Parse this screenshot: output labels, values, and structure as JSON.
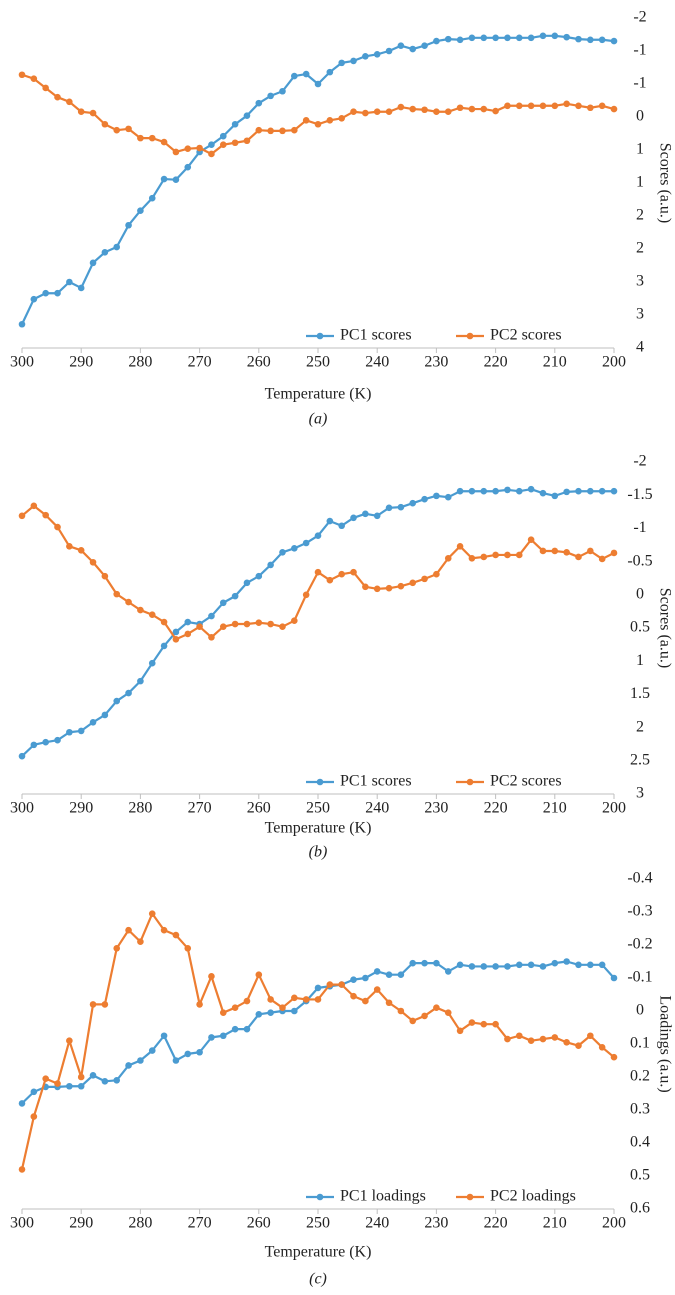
{
  "chart_data": [
    {
      "type": "line",
      "caption": "(a)",
      "x_label": "Temperature (K)",
      "y_label": "Scores (a.u.)",
      "y_axis_side": "right",
      "legend": "lower right",
      "markers": true,
      "x": [
        300,
        298,
        296,
        294,
        292,
        290,
        288,
        286,
        284,
        282,
        280,
        278,
        276,
        274,
        272,
        270,
        268,
        266,
        264,
        262,
        260,
        258,
        256,
        254,
        252,
        250,
        248,
        246,
        244,
        242,
        240,
        238,
        236,
        234,
        232,
        230,
        228,
        226,
        224,
        222,
        220,
        218,
        216,
        214,
        212,
        210,
        208,
        206,
        204,
        202,
        200
      ],
      "xlim": [
        300,
        200
      ],
      "xticks": [
        300,
        290,
        280,
        270,
        260,
        250,
        240,
        230,
        220,
        210,
        200
      ],
      "ylim": [
        3.5,
        -1.5
      ],
      "yticks": [
        {
          "value": -1.5,
          "label": "-2"
        },
        -1,
        {
          "value": -0.5,
          "label": "-1"
        },
        0,
        {
          "value": 0.5,
          "label": "1"
        },
        1,
        {
          "value": 1.5,
          "label": "2"
        },
        2,
        {
          "value": 2.5,
          "label": "3"
        },
        3,
        {
          "value": 3.5,
          "label": "4"
        }
      ],
      "series": [
        {
          "name": "PC1 scores",
          "color": "#4a9bd1",
          "values": [
            3.14,
            2.76,
            2.67,
            2.67,
            2.5,
            2.59,
            2.21,
            2.05,
            1.97,
            1.64,
            1.42,
            1.23,
            0.94,
            0.95,
            0.76,
            0.53,
            0.42,
            0.29,
            0.11,
            -0.02,
            -0.21,
            -0.32,
            -0.39,
            -0.62,
            -0.65,
            -0.5,
            -0.68,
            -0.82,
            -0.85,
            -0.92,
            -0.95,
            -1.0,
            -1.08,
            -1.03,
            -1.08,
            -1.15,
            -1.18,
            -1.17,
            -1.2,
            -1.2,
            -1.2,
            -1.2,
            -1.2,
            -1.2,
            -1.23,
            -1.23,
            -1.21,
            -1.18,
            -1.17,
            -1.17,
            -1.15
          ]
        },
        {
          "name": "PC2 scores",
          "color": "#ed7d31",
          "values": [
            -0.64,
            -0.58,
            -0.44,
            -0.3,
            -0.23,
            -0.08,
            -0.06,
            0.11,
            0.2,
            0.18,
            0.32,
            0.32,
            0.38,
            0.53,
            0.48,
            0.47,
            0.56,
            0.42,
            0.39,
            0.36,
            0.2,
            0.21,
            0.21,
            0.2,
            0.05,
            0.11,
            0.05,
            0.02,
            -0.08,
            -0.06,
            -0.08,
            -0.08,
            -0.15,
            -0.12,
            -0.11,
            -0.08,
            -0.08,
            -0.14,
            -0.12,
            -0.12,
            -0.09,
            -0.17,
            -0.17,
            -0.17,
            -0.17,
            -0.17,
            -0.2,
            -0.17,
            -0.14,
            -0.17,
            -0.12
          ]
        }
      ]
    },
    {
      "type": "line",
      "caption": "(b)",
      "x_label": "Temperature (K)",
      "y_label": "Scores (a.u.)",
      "y_axis_side": "right",
      "legend": "lower right",
      "markers": true,
      "x": [
        300,
        298,
        296,
        294,
        292,
        290,
        288,
        286,
        284,
        282,
        280,
        278,
        276,
        274,
        272,
        270,
        268,
        266,
        264,
        262,
        260,
        258,
        256,
        254,
        252,
        250,
        248,
        246,
        244,
        242,
        240,
        238,
        236,
        234,
        232,
        230,
        228,
        226,
        224,
        222,
        220,
        218,
        216,
        214,
        212,
        210,
        208,
        206,
        204,
        202,
        200
      ],
      "xlim": [
        300,
        200
      ],
      "xticks": [
        300,
        290,
        280,
        270,
        260,
        250,
        240,
        230,
        220,
        210,
        200
      ],
      "ylim": [
        3,
        -2
      ],
      "yticks": [
        -2,
        -1.5,
        -1,
        -0.5,
        0,
        0.5,
        1,
        1.5,
        2,
        2.5,
        3
      ],
      "series": [
        {
          "name": "PC1 scores",
          "color": "#4a9bd1",
          "values": [
            2.43,
            2.26,
            2.22,
            2.19,
            2.07,
            2.05,
            1.92,
            1.81,
            1.6,
            1.48,
            1.3,
            1.03,
            0.77,
            0.56,
            0.41,
            0.44,
            0.32,
            0.12,
            0.02,
            -0.18,
            -0.28,
            -0.45,
            -0.64,
            -0.7,
            -0.78,
            -0.89,
            -1.11,
            -1.04,
            -1.16,
            -1.22,
            -1.19,
            -1.31,
            -1.32,
            -1.38,
            -1.44,
            -1.49,
            -1.47,
            -1.56,
            -1.56,
            -1.56,
            -1.56,
            -1.58,
            -1.56,
            -1.59,
            -1.53,
            -1.49,
            -1.55,
            -1.56,
            -1.56,
            -1.56,
            -1.56
          ]
        },
        {
          "name": "PC2 scores",
          "color": "#ed7d31",
          "values": [
            -1.19,
            -1.34,
            -1.2,
            -1.02,
            -0.73,
            -0.67,
            -0.49,
            -0.28,
            -0.01,
            0.11,
            0.23,
            0.3,
            0.41,
            0.67,
            0.59,
            0.48,
            0.64,
            0.48,
            0.44,
            0.44,
            0.42,
            0.44,
            0.48,
            0.39,
            0.0,
            -0.34,
            -0.22,
            -0.31,
            -0.34,
            -0.12,
            -0.09,
            -0.1,
            -0.13,
            -0.18,
            -0.24,
            -0.31,
            -0.55,
            -0.73,
            -0.55,
            -0.57,
            -0.6,
            -0.6,
            -0.6,
            -0.83,
            -0.66,
            -0.66,
            -0.64,
            -0.57,
            -0.66,
            -0.54,
            -0.63
          ]
        }
      ]
    },
    {
      "type": "line",
      "caption": "(c)",
      "x_label": "Temperature (K)",
      "y_label": "Loadings (a.u.)",
      "y_axis_side": "right",
      "legend": "lower right",
      "markers": true,
      "x": [
        300,
        298,
        296,
        294,
        292,
        290,
        288,
        286,
        284,
        282,
        280,
        278,
        276,
        274,
        272,
        270,
        268,
        266,
        264,
        262,
        260,
        258,
        256,
        254,
        252,
        250,
        248,
        246,
        244,
        242,
        240,
        238,
        236,
        234,
        232,
        230,
        228,
        226,
        224,
        222,
        220,
        218,
        216,
        214,
        212,
        210,
        208,
        206,
        204,
        202,
        200
      ],
      "xlim": [
        300,
        200
      ],
      "xticks": [
        300,
        290,
        280,
        270,
        260,
        250,
        240,
        230,
        220,
        210,
        200
      ],
      "ylim": [
        0.6,
        -0.4
      ],
      "yticks": [
        -0.4,
        -0.3,
        -0.2,
        -0.1,
        0,
        0.1,
        0.2,
        0.3,
        0.4,
        0.5,
        0.6
      ],
      "series": [
        {
          "name": "PC1 loadings",
          "color": "#4a9bd1",
          "values": [
            0.28,
            0.245,
            0.23,
            0.23,
            0.228,
            0.228,
            0.195,
            0.213,
            0.21,
            0.165,
            0.15,
            0.12,
            0.075,
            0.15,
            0.13,
            0.125,
            0.08,
            0.075,
            0.055,
            0.055,
            0.01,
            0.005,
            0.0,
            0.0,
            -0.03,
            -0.07,
            -0.075,
            -0.08,
            -0.095,
            -0.1,
            -0.12,
            -0.11,
            -0.11,
            -0.145,
            -0.145,
            -0.145,
            -0.12,
            -0.14,
            -0.135,
            -0.135,
            -0.135,
            -0.135,
            -0.14,
            -0.14,
            -0.135,
            -0.145,
            -0.15,
            -0.14,
            -0.14,
            -0.14,
            -0.1
          ]
        },
        {
          "name": "PC2 loadings",
          "color": "#ed7d31",
          "values": [
            0.48,
            0.32,
            0.205,
            0.22,
            0.09,
            0.2,
            -0.02,
            -0.02,
            -0.19,
            -0.245,
            -0.21,
            -0.295,
            -0.245,
            -0.23,
            -0.19,
            -0.02,
            -0.105,
            0.005,
            -0.01,
            -0.03,
            -0.11,
            -0.035,
            -0.01,
            -0.04,
            -0.035,
            -0.035,
            -0.08,
            -0.08,
            -0.045,
            -0.03,
            -0.065,
            -0.025,
            0.0,
            0.03,
            0.015,
            -0.01,
            0.005,
            0.06,
            0.035,
            0.04,
            0.04,
            0.085,
            0.075,
            0.09,
            0.085,
            0.08,
            0.095,
            0.105,
            0.075,
            0.11,
            0.14
          ]
        }
      ]
    }
  ]
}
